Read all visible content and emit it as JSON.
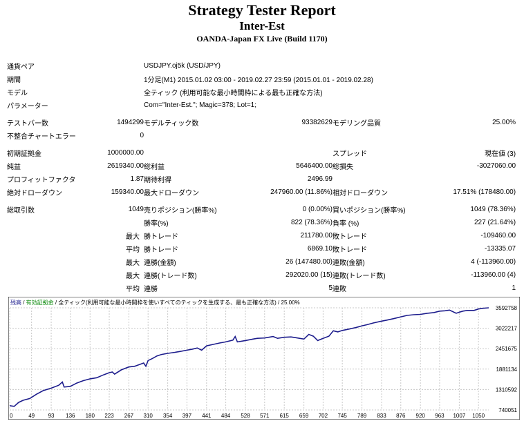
{
  "header": {
    "title": "Strategy Tester Report",
    "ea_name": "Inter-Est",
    "server": "OANDA-Japan FX Live (Build 1170)"
  },
  "info": {
    "symbol_label": "通貨ペア",
    "symbol_value": "USDJPY.oj5k (USD/JPY)",
    "period_label": "期間",
    "period_value": "1分足(M1) 2015.01.02 03:00 - 2019.02.27 23:59 (2015.01.01 - 2019.02.28)",
    "model_label": "モデル",
    "model_value": "全ティック (利用可能な最小時間枠による最も正確な方法)",
    "params_label": "パラメーター",
    "params_value": "Com=\"Inter-Est.\"; Magic=378; Lot=1;"
  },
  "stats": {
    "bars_label": "テストバー数",
    "bars_value": "1494299",
    "ticks_label": "モデルティック数",
    "ticks_value": "93382629",
    "quality_label": "モデリング品質",
    "quality_value": "25.00%",
    "mismatch_label": "不整合チャートエラー",
    "mismatch_value": "0",
    "deposit_label": "初期証拠金",
    "deposit_value": "1000000.00",
    "spread_label": "スプレッド",
    "spread_value": "現在値 (3)",
    "net_label": "純益",
    "net_value": "2619340.00",
    "gross_profit_label": "総利益",
    "gross_profit_value": "5646400.00",
    "gross_loss_label": "総損失",
    "gross_loss_value": "-3027060.00",
    "pf_label": "プロフィットファクタ",
    "pf_value": "1.87",
    "payoff_label": "期待利得",
    "payoff_value": "2496.99",
    "abs_dd_label": "絶対ドローダウン",
    "abs_dd_value": "159340.00",
    "max_dd_label": "最大ドローダウン",
    "max_dd_value": "247960.00 (11.86%)",
    "rel_dd_label": "相対ドローダウン",
    "rel_dd_value": "17.51% (178480.00)",
    "trades_label": "総取引数",
    "trades_value": "1049",
    "short_label": "売りポジション(勝率%)",
    "short_value": "0 (0.00%)",
    "long_label": "買いポジション(勝率%)",
    "long_value": "1049 (78.36%)",
    "win_label": "勝率(%)",
    "win_value": "822 (78.36%)",
    "loss_label": "負率 (%)",
    "loss_value": "227 (21.64%)",
    "max_word": "最大",
    "avg_word": "平均",
    "largest_win_label": "勝トレード",
    "largest_win_value": "211780.00",
    "largest_loss_label": "敗トレード",
    "largest_loss_value": "-109460.00",
    "avg_win_label": "勝トレード",
    "avg_win_value": "6869.10",
    "avg_loss_label": "敗トレード",
    "avg_loss_value": "-13335.07",
    "cons_win_label": "連勝(金額)",
    "cons_win_value": "26 (147480.00)",
    "cons_loss_label": "連敗(金額)",
    "cons_loss_value": "4 (-113960.00)",
    "cons_win_amt_label": "連勝(トレード数)",
    "cons_win_amt_value": "292020.00 (15)",
    "cons_loss_amt_label": "連敗(トレード数)",
    "cons_loss_amt_value": "-113960.00 (4)",
    "avg_cons_win_label": "連勝",
    "avg_cons_win_value": "5",
    "avg_cons_loss_label": "連敗",
    "avg_cons_loss_value": "1"
  },
  "colors": {
    "line": "#1c1c8c",
    "legend_balance": "#1c1c8c",
    "legend_equity": "#0a8a0a",
    "grid": "#c8c8c8"
  },
  "chart_data": {
    "type": "line",
    "legend": {
      "balance": "残高",
      "sep1": " / ",
      "equity": "有効証拠金",
      "sep2": " / ",
      "model": "全ティック(利用可能な最小時間枠を使いすべてのティックを生成する、最も正確な方法)",
      "sep3": " / ",
      "quality": "25.00%"
    },
    "x_ticks": [
      "0",
      "49",
      "93",
      "136",
      "180",
      "223",
      "267",
      "310",
      "354",
      "397",
      "441",
      "484",
      "528",
      "571",
      "615",
      "659",
      "702",
      "745",
      "789",
      "833",
      "876",
      "920",
      "963",
      "1007",
      "1050"
    ],
    "y_ticks": [
      3592758,
      3022217,
      2451675,
      1881134,
      1310592,
      740051
    ],
    "xlim": [
      0,
      1073
    ],
    "ylim": [
      740051,
      3592758
    ],
    "x": [
      0,
      10,
      20,
      30,
      45,
      60,
      75,
      93,
      110,
      118,
      122,
      136,
      150,
      165,
      180,
      195,
      210,
      223,
      230,
      235,
      250,
      267,
      280,
      300,
      305,
      310,
      320,
      330,
      340,
      354,
      370,
      380,
      397,
      410,
      420,
      430,
      441,
      455,
      470,
      484,
      500,
      505,
      510,
      528,
      545,
      555,
      571,
      590,
      600,
      615,
      630,
      640,
      659,
      670,
      680,
      690,
      702,
      715,
      725,
      735,
      745,
      760,
      775,
      789,
      800,
      815,
      833,
      845,
      860,
      876,
      890,
      905,
      920,
      935,
      950,
      963,
      975,
      985,
      1000,
      1007,
      1015,
      1025,
      1040,
      1050,
      1060,
      1073
    ],
    "y": [
      860000,
      840000,
      950000,
      1010000,
      1060000,
      1180000,
      1280000,
      1350000,
      1430000,
      1520000,
      1380000,
      1400000,
      1490000,
      1560000,
      1610000,
      1640000,
      1720000,
      1780000,
      1800000,
      1740000,
      1860000,
      1940000,
      1960000,
      2050000,
      1960000,
      2120000,
      2180000,
      2250000,
      2290000,
      2320000,
      2350000,
      2370000,
      2410000,
      2440000,
      2470000,
      2410000,
      2530000,
      2570000,
      2610000,
      2640000,
      2690000,
      2790000,
      2640000,
      2680000,
      2720000,
      2740000,
      2750000,
      2790000,
      2740000,
      2770000,
      2780000,
      2760000,
      2720000,
      2850000,
      2800000,
      2680000,
      2740000,
      2800000,
      2950000,
      2920000,
      2960000,
      3000000,
      3040000,
      3090000,
      3120000,
      3170000,
      3220000,
      3250000,
      3290000,
      3340000,
      3380000,
      3400000,
      3410000,
      3440000,
      3460000,
      3500000,
      3510000,
      3530000,
      3440000,
      3470000,
      3500000,
      3520000,
      3520000,
      3560000,
      3580000,
      3592758
    ]
  }
}
